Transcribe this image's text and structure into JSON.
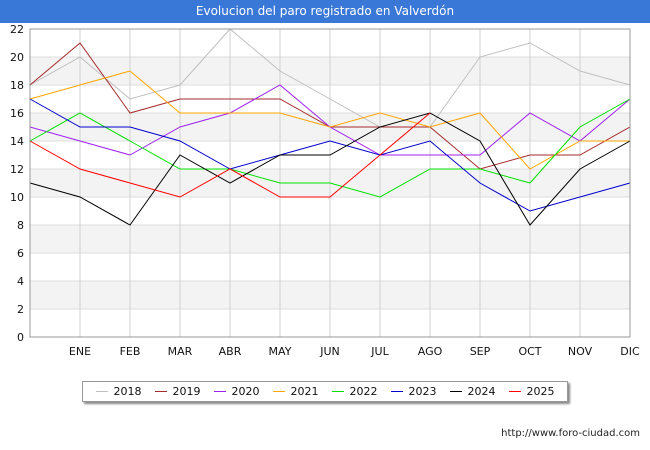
{
  "header": {
    "title": "Evolucion del paro registrado en Valverdón"
  },
  "footer": {
    "source": "http://www.foro-ciudad.com"
  },
  "chart_data": {
    "type": "line",
    "title": "Evolucion del paro registrado en Valverdón",
    "xlabel": "",
    "ylabel": "",
    "ylim": [
      0,
      22
    ],
    "yticks": [
      0,
      2,
      4,
      6,
      8,
      10,
      12,
      14,
      16,
      18,
      20,
      22
    ],
    "categories": [
      "",
      "ENE",
      "FEB",
      "MAR",
      "ABR",
      "MAY",
      "JUN",
      "JUL",
      "AGO",
      "SEP",
      "OCT",
      "NOV",
      "DIC"
    ],
    "grid": true,
    "legend_position": "bottom",
    "series": [
      {
        "name": "2018",
        "color": "#c0c0c0",
        "values": [
          18,
          20,
          17,
          18,
          22,
          19,
          17,
          15,
          15,
          20,
          21,
          19,
          18
        ]
      },
      {
        "name": "2019",
        "color": "#a52a2a",
        "values": [
          18,
          21,
          16,
          17,
          17,
          17,
          15,
          15,
          15,
          12,
          13,
          13,
          15
        ]
      },
      {
        "name": "2020",
        "color": "#a020f0",
        "values": [
          15,
          14,
          13,
          15,
          16,
          18,
          15,
          13,
          13,
          13,
          16,
          14,
          17
        ]
      },
      {
        "name": "2021",
        "color": "#ffa500",
        "values": [
          17,
          18,
          19,
          16,
          16,
          16,
          15,
          16,
          15,
          16,
          12,
          14,
          14
        ]
      },
      {
        "name": "2022",
        "color": "#00e000",
        "values": [
          14,
          16,
          14,
          12,
          12,
          11,
          11,
          10,
          12,
          12,
          11,
          15,
          17
        ]
      },
      {
        "name": "2023",
        "color": "#0000cc",
        "values": [
          17,
          15,
          15,
          14,
          12,
          13,
          14,
          13,
          14,
          11,
          9,
          10,
          11
        ]
      },
      {
        "name": "2024",
        "color": "#000000",
        "values": [
          11,
          10,
          8,
          13,
          11,
          13,
          13,
          15,
          16,
          14,
          8,
          12,
          14
        ]
      },
      {
        "name": "2025",
        "color": "#ff0000",
        "values": [
          14,
          12,
          11,
          10,
          12,
          10,
          10,
          13,
          16,
          null,
          null,
          null,
          null
        ]
      }
    ]
  }
}
